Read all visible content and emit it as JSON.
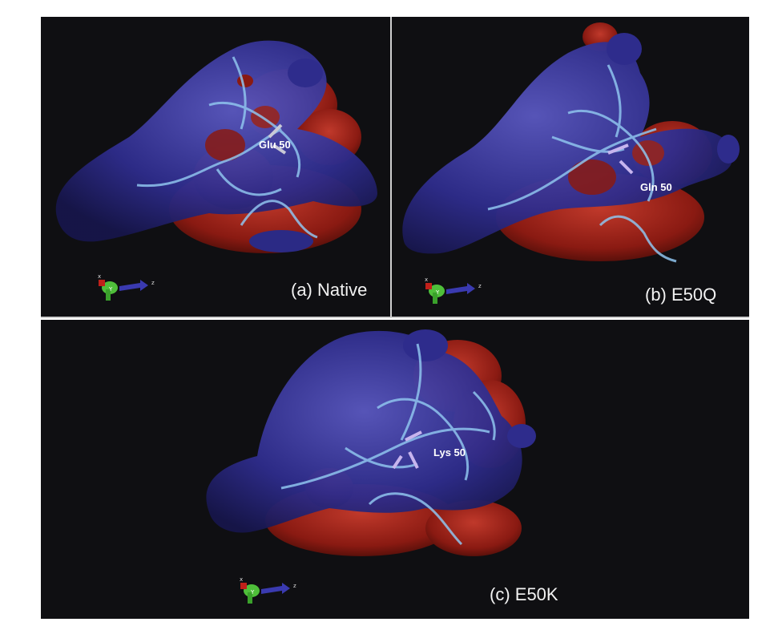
{
  "figure": {
    "panels": [
      {
        "id": "a",
        "caption": "(a) Native",
        "residue_label": "Glu 50"
      },
      {
        "id": "b",
        "caption": "(b) E50Q",
        "residue_label": "Gln 50"
      },
      {
        "id": "c",
        "caption": "(c) E50K",
        "residue_label": "Lys 50"
      }
    ],
    "axis_labels": {
      "x": "x",
      "y": "Y",
      "z": "z"
    },
    "colors": {
      "background": "#0f0f12",
      "positive_surface": "#2e2c8c",
      "negative_surface": "#8a1a12",
      "ribbon": "#8fc4ee",
      "divider": "#cfcfcf"
    }
  }
}
